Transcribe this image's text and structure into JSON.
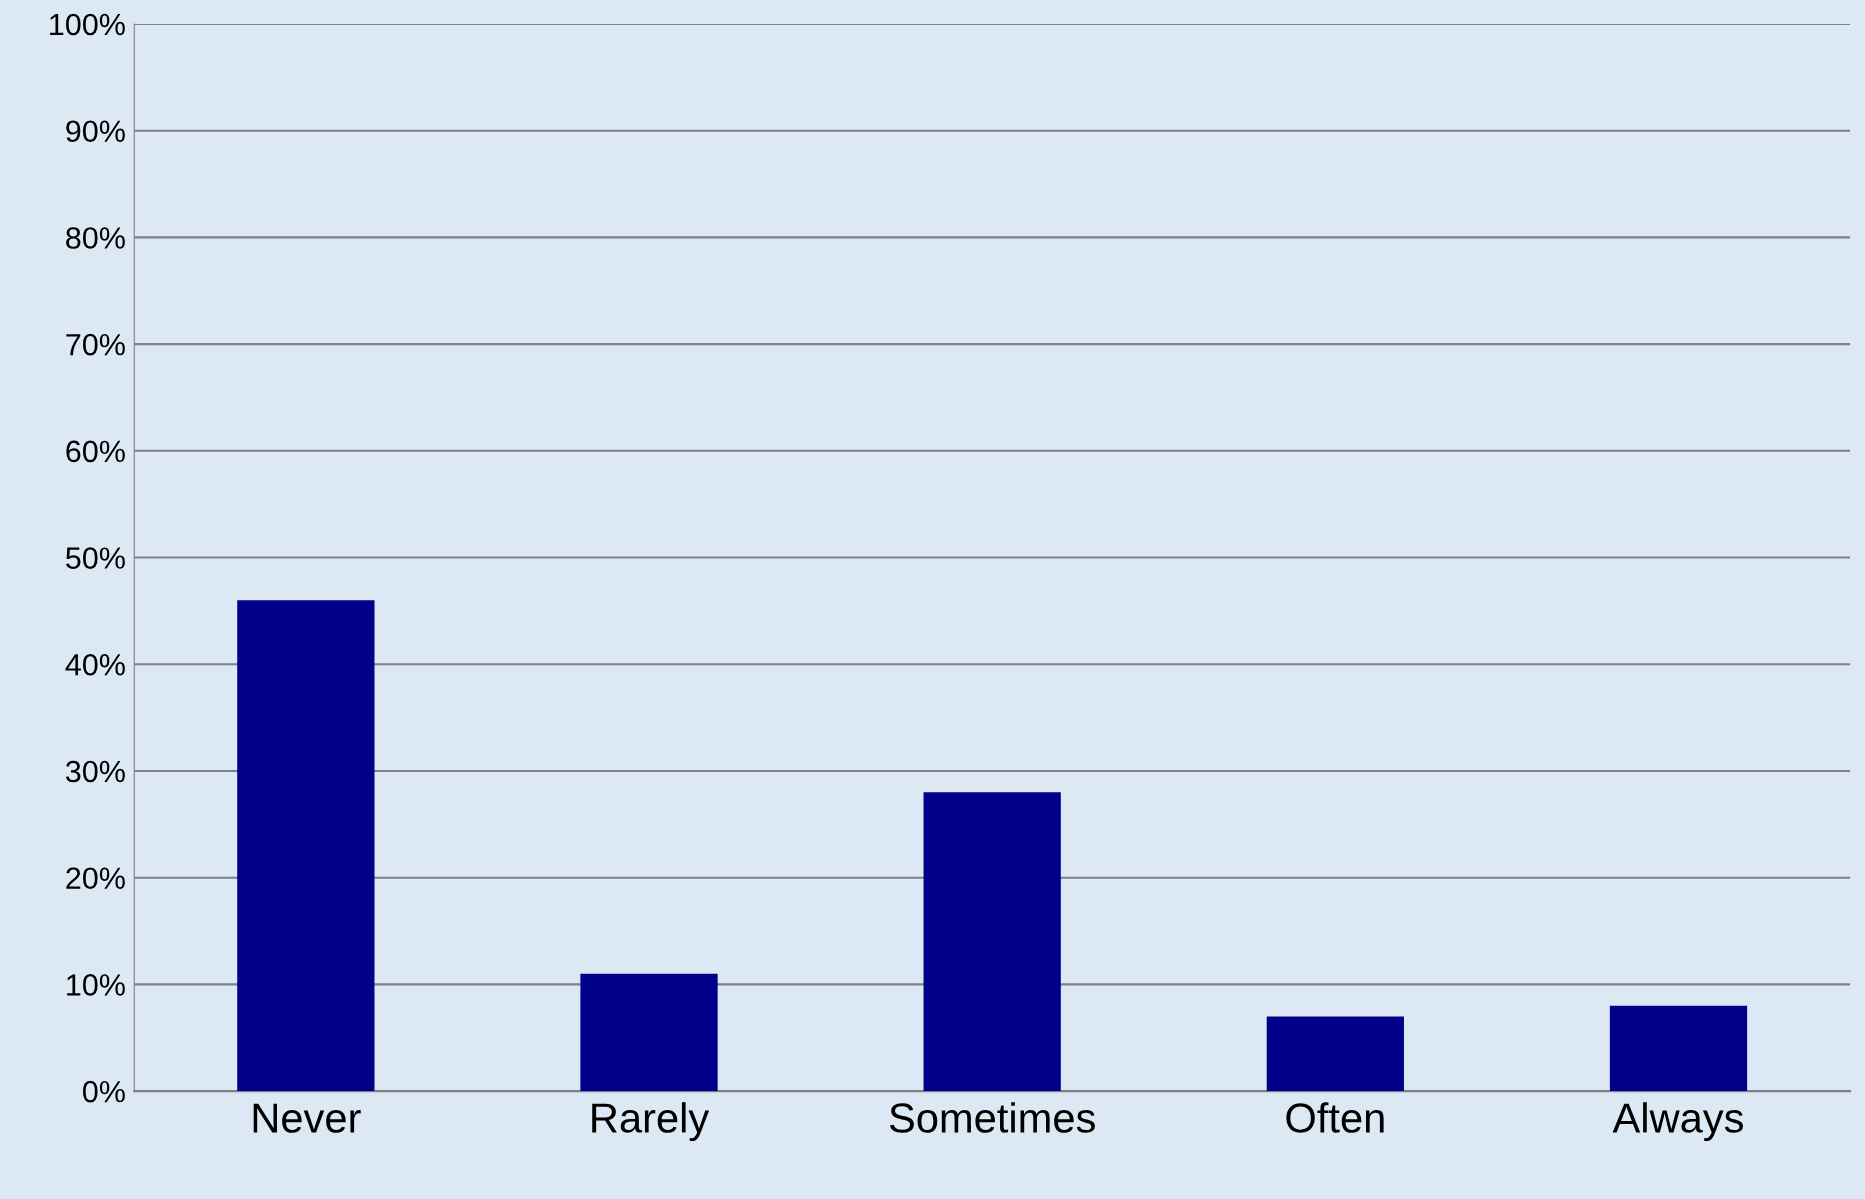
{
  "chart_data": {
    "type": "bar",
    "categories": [
      "Never",
      "Rarely",
      "Sometimes",
      "Often",
      "Always"
    ],
    "values": [
      46,
      11,
      28,
      7,
      8
    ],
    "color": "#00008b",
    "ylim": [
      0,
      100
    ],
    "yticks": [
      {
        "value": 0,
        "label": "0%"
      },
      {
        "value": 10,
        "label": "10%"
      },
      {
        "value": 20,
        "label": "20%"
      },
      {
        "value": 30,
        "label": "30%"
      },
      {
        "value": 40,
        "label": "40%"
      },
      {
        "value": 50,
        "label": "50%"
      },
      {
        "value": 60,
        "label": "60%"
      },
      {
        "value": 70,
        "label": "70%"
      },
      {
        "value": 80,
        "label": "80%"
      },
      {
        "value": 90,
        "label": "90%"
      },
      {
        "value": 100,
        "label": "100%"
      }
    ],
    "grid": "y"
  }
}
